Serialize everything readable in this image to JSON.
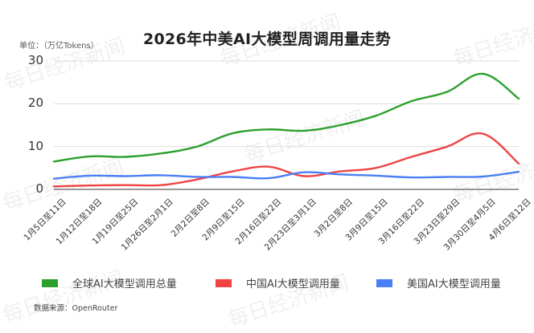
{
  "header": {
    "title": "2026年中美AI大模型周调用量走势",
    "unit": "单位：（万亿Tokens）"
  },
  "footer": {
    "source": "数据来源：OpenRouter"
  },
  "watermark": "每日经济新闻",
  "colors": {
    "global": "#2ca02c",
    "china": "#ef4444",
    "usa": "#4a7ff5",
    "grid": "#dddddd",
    "axis": "#777777"
  },
  "chart_data": {
    "type": "line",
    "title": "2026年中美AI大模型周调用量走势",
    "ylabel": "单位：（万亿Tokens）",
    "xlabel": "",
    "ylim": [
      0,
      30
    ],
    "yticks": [
      0,
      10,
      20,
      30
    ],
    "grid": true,
    "legend_position": "bottom",
    "categories": [
      "1月5日至11日",
      "1月12日至18日",
      "1月19日至25日",
      "1月26日至2月1日",
      "2月2日至8日",
      "2月9日至15日",
      "2月16日至22日",
      "2月23日至3月1日",
      "3月2日至8日",
      "3月9日至15日",
      "3月16日至22日",
      "3月23日至29日",
      "3月30日至4月5日",
      "4月6日至12日"
    ],
    "series": [
      {
        "name": "全球AI大模型调用总量",
        "color": "#2ca02c",
        "values": [
          6.5,
          7.7,
          7.6,
          8.4,
          10.0,
          13.1,
          14.0,
          13.7,
          15.0,
          17.2,
          20.6,
          22.8,
          27.0,
          21.2
        ]
      },
      {
        "name": "中国AI大模型调用量",
        "color": "#ef4444",
        "values": [
          0.7,
          0.9,
          1.0,
          1.0,
          2.3,
          4.2,
          5.3,
          3.1,
          4.2,
          5.0,
          7.6,
          10.0,
          13.0,
          6.0
        ]
      },
      {
        "name": "美国AI大模型调用量",
        "color": "#4a7ff5",
        "values": [
          2.5,
          3.2,
          3.1,
          3.3,
          2.9,
          2.9,
          2.6,
          4.0,
          3.5,
          3.2,
          2.8,
          2.9,
          3.0,
          4.1
        ]
      }
    ]
  }
}
